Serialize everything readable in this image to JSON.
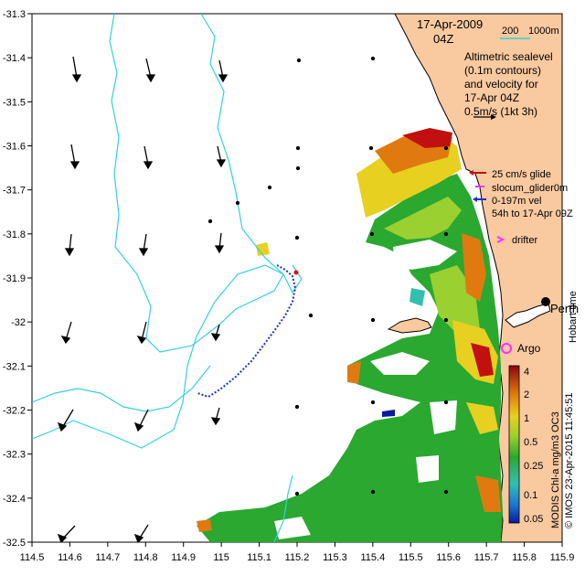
{
  "map": {
    "date": "17-Apr-2009",
    "time": "04Z",
    "depth_labels": {
      "d200": "200",
      "d1000": "1000m"
    },
    "legend_lines": [
      "Altimetric sealevel",
      "(0.1m contours)",
      "and velocity for",
      "17-Apr 04Z",
      "0.5m/s (1kt 3h)"
    ],
    "glider_legend": [
      "25 cm/s glide",
      "slocum_glider0m",
      "0-197m vel",
      "54h to 17-Apr 09Z"
    ],
    "drifter_label": "drifter",
    "argo_label": "Argo",
    "city_label": "Perth",
    "hobart_label": "Hobart time",
    "colorbar_title": "MODIS Chl-a mg/m3 OC3",
    "copyright": "© IMOS 23-Apr-2015 11:45:51",
    "colorbar_ticks": [
      "4",
      "2",
      "1",
      "0.5",
      "0.25",
      "0.1",
      "0.05"
    ],
    "x_ticks": [
      "114.5",
      "114.6",
      "114.7",
      "114.8",
      "114.9",
      "115",
      "115.1",
      "115.2",
      "115.3",
      "115.4",
      "115.5",
      "115.6",
      "115.7",
      "115.8",
      "115.9"
    ],
    "y_ticks": [
      "-31.3",
      "-31.4",
      "-31.5",
      "-31.6",
      "-31.7",
      "-31.8",
      "-31.9",
      "-32",
      "-32.1",
      "-32.2",
      "-32.3",
      "-32.4",
      "-32.5"
    ],
    "colors": {
      "land": "#f9c9a0",
      "contour": "#35d0e0",
      "arrow": "#000000",
      "glider_track": "#2030c8",
      "glider_end": "#e01010",
      "drifter": "#ff30ff",
      "argo": "#ff30ff",
      "chl_low": "#1a9a2a",
      "chl_mid": "#e8d020",
      "chl_high": "#c01010"
    }
  }
}
